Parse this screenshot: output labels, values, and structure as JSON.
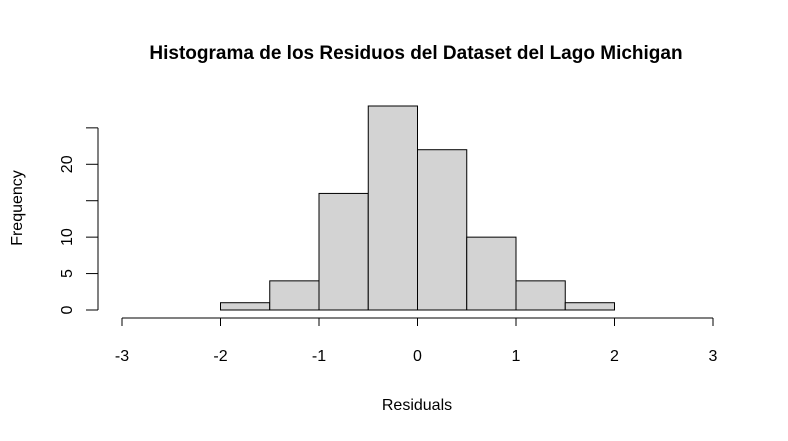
{
  "chart_data": {
    "type": "histogram",
    "title": "Histograma de los Residuos del Dataset del Lago Michigan",
    "xlabel": "Residuals",
    "ylabel": "Frequency",
    "bins": [
      -2,
      -1.5,
      -1,
      -0.5,
      0,
      0.5,
      1,
      1.5,
      2
    ],
    "values": [
      1,
      4,
      16,
      28,
      22,
      10,
      4,
      1
    ],
    "color": "#d3d3d3",
    "xlim": [
      -3,
      3
    ],
    "xticks": [
      -3,
      -2,
      -1,
      0,
      1,
      2,
      3
    ],
    "ylim": [
      0,
      28
    ],
    "yticks": [
      0,
      5,
      10,
      {
        "value": 15,
        "label": null
      },
      20,
      {
        "value": 25,
        "label": null
      }
    ]
  }
}
